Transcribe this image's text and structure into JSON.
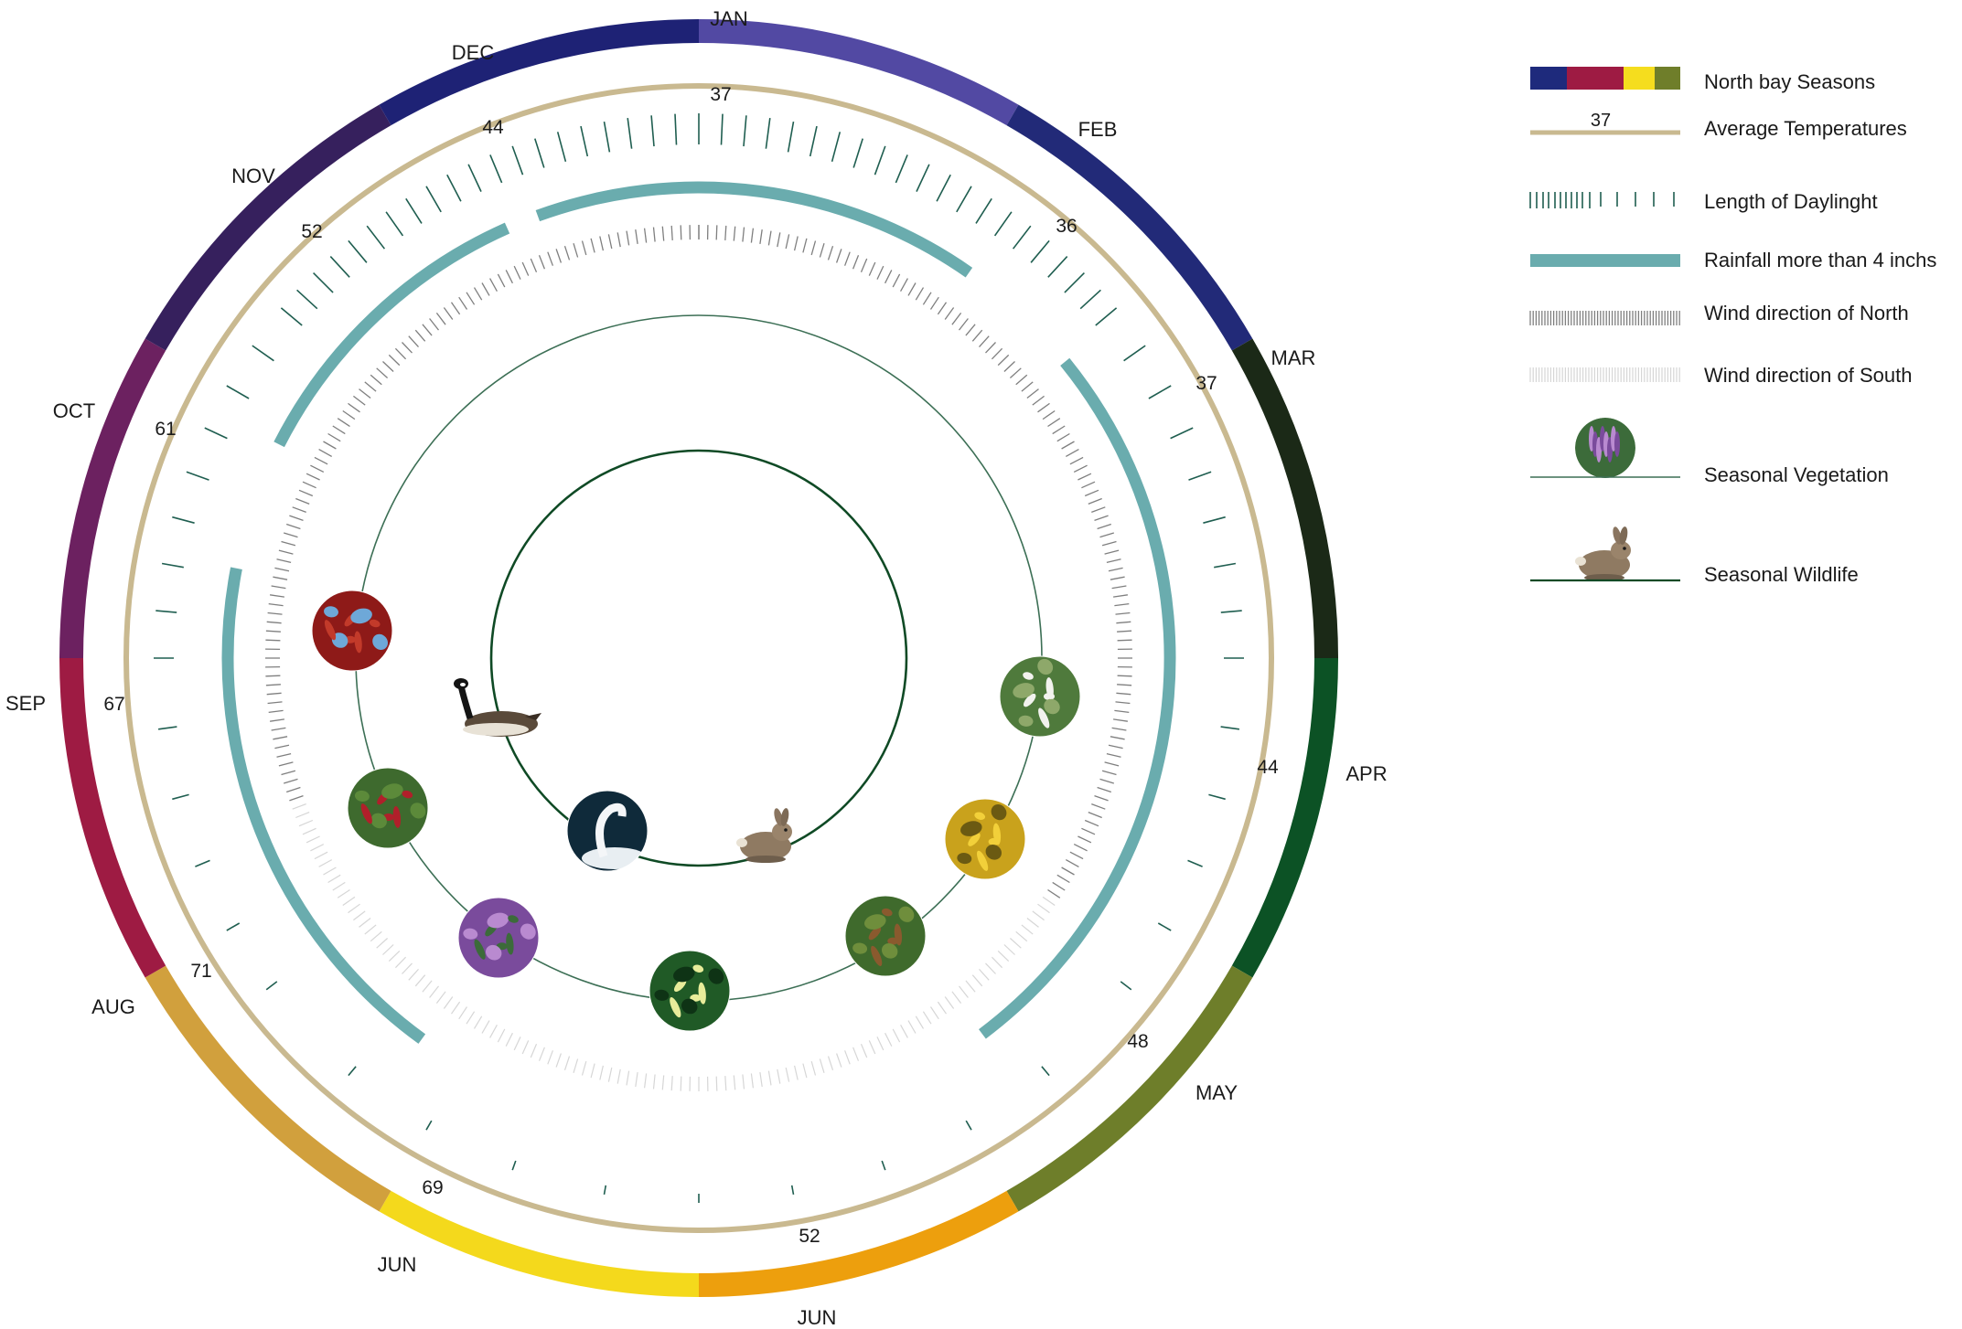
{
  "colors": {
    "background": "#ffffff",
    "temperature_ring": "#c9b990",
    "daylight_ticks": "#1f5e50",
    "rainfall": "#6aacae",
    "wind_north": "#7f7f7f",
    "wind_south": "#d6d6d6",
    "vegetation_ring": "#3c6f55",
    "wildlife_ring": "#0f4a25",
    "text": "#1a1a1a"
  },
  "season_ring": {
    "segments": [
      {
        "color": "#5249a3"
      },
      {
        "color": "#222a78"
      },
      {
        "color": "#1b2917"
      },
      {
        "color": "#0c5225"
      },
      {
        "color": "#6e7e2a"
      },
      {
        "color": "#ed9f0d"
      },
      {
        "color": "#f4d91c"
      },
      {
        "color": "#d1a03d"
      },
      {
        "color": "#9e1b43"
      },
      {
        "color": "#6c2160"
      },
      {
        "color": "#36205d"
      },
      {
        "color": "#1e2275"
      }
    ]
  },
  "month_labels": [
    "JAN",
    "FEB",
    "MAR",
    "APR",
    "MAY",
    "JUN",
    "JUN",
    "AUG",
    "SEP",
    "OCT",
    "NOV",
    "DEC"
  ],
  "temperatures": [
    "37",
    "36",
    "37",
    "44",
    "48",
    "52",
    "69",
    "71",
    "67",
    "61",
    "52",
    "44"
  ],
  "rainfall_arcs": [
    {
      "from_month": "JAN",
      "to_month": "FEB"
    },
    {
      "from_month": "MAR",
      "to_month": "APR"
    },
    {
      "from_month": "AUG",
      "to_month": "SEP"
    },
    {
      "from_month": "OCT",
      "to_month": "DEC"
    }
  ],
  "vegetation": [
    {
      "icon": "white-flower-photo",
      "colors": [
        "#4f7a3c",
        "#f2f2ee",
        "#8ea86a"
      ]
    },
    {
      "icon": "yellow-flower-photo",
      "colors": [
        "#c9a21c",
        "#f2d03a",
        "#6b5a12"
      ]
    },
    {
      "icon": "fern-shrub-photo",
      "colors": [
        "#3f6a2c",
        "#8a5a2e",
        "#6f8e3c"
      ]
    },
    {
      "icon": "honeysuckle-photo",
      "colors": [
        "#205a26",
        "#e8ec9a",
        "#0e3315"
      ]
    },
    {
      "icon": "purple-loosestrife-photo",
      "colors": [
        "#7a4b9c",
        "#3c6b3a",
        "#b98ad0"
      ]
    },
    {
      "icon": "red-berries-photo",
      "colors": [
        "#3e6a2e",
        "#b0202a",
        "#5c8a3a"
      ]
    },
    {
      "icon": "red-foliage-photo",
      "colors": [
        "#8e1a18",
        "#c23a2a",
        "#6ea8d8"
      ]
    }
  ],
  "wildlife": [
    {
      "icon": "canada-goose-icon"
    },
    {
      "icon": "swan-icon"
    },
    {
      "icon": "rabbit-icon"
    }
  ],
  "legend": {
    "seasons_swatches": [
      "#1e2a7c",
      "#9e1b43",
      "#f5dd1e",
      "#6f7e2a"
    ],
    "items": [
      {
        "label": "North bay Seasons"
      },
      {
        "label": "Average Temperatures",
        "sample_value": "37"
      },
      {
        "label": "Length of Daylinght"
      },
      {
        "label": "Rainfall more than 4 inchs"
      },
      {
        "label": "Wind direction of North"
      },
      {
        "label": "Wind direction of South"
      },
      {
        "label": "Seasonal Vegetation"
      },
      {
        "label": "Seasonal Wildlife"
      }
    ]
  }
}
